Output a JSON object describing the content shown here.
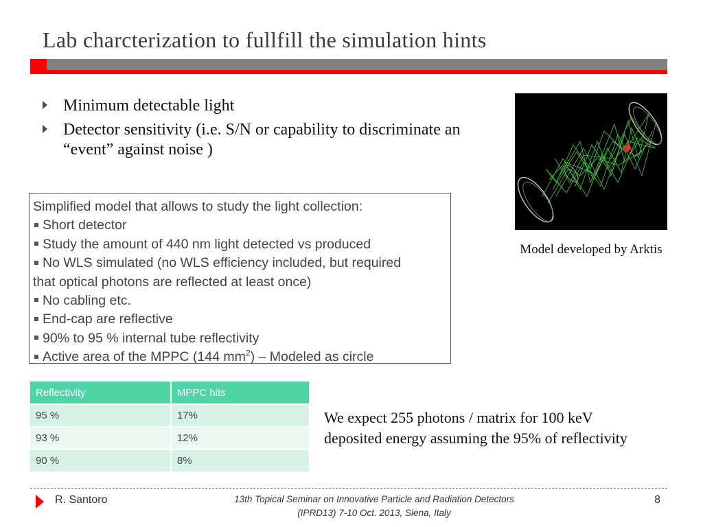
{
  "title": "Lab charcterization to fullfill the simulation hints",
  "bullets": [
    "Minimum detectable light",
    "Detector sensitivity (i.e. S/N or capability to discriminate an “event” against noise )"
  ],
  "model_box": {
    "heading": "Simplified model that allows to study the light collection:",
    "items": [
      "Short detector",
      "Study the amount of 440 nm light detected vs produced",
      "No WLS simulated (no WLS efficiency included, but required",
      "that optical photons are reflected at least once)",
      "No cabling etc.",
      "End-cap are reflective",
      "90% to 95 % internal tube reflectivity"
    ],
    "last_item_prefix": "Active area of the MPPC (144 mm",
    "last_item_sup": "2",
    "last_item_suffix": ") – Modeled as circle"
  },
  "image": {
    "caption": "Model developed  by Arktis"
  },
  "table": {
    "headers": [
      "Reflectivity",
      "MPPC hits"
    ],
    "rows": [
      [
        "95 %",
        "17%"
      ],
      [
        "93 %",
        "12%"
      ],
      [
        "90 %",
        "8%"
      ]
    ],
    "header_color": "#4fd4a6"
  },
  "expectation": [
    "We expect 255 photons / matrix for 100 keV",
    "deposited energy assuming the 95% of reflectivity"
  ],
  "footer": {
    "author": "R. Santoro",
    "conference_line1": "13th Topical Seminar on Innovative Particle and Radiation Detectors",
    "conference_line2": "(IPRD13) 7-10 Oct. 2013, Siena, Italy",
    "page": "8"
  },
  "colors": {
    "accent": "#ff0000",
    "band": "#808080"
  }
}
